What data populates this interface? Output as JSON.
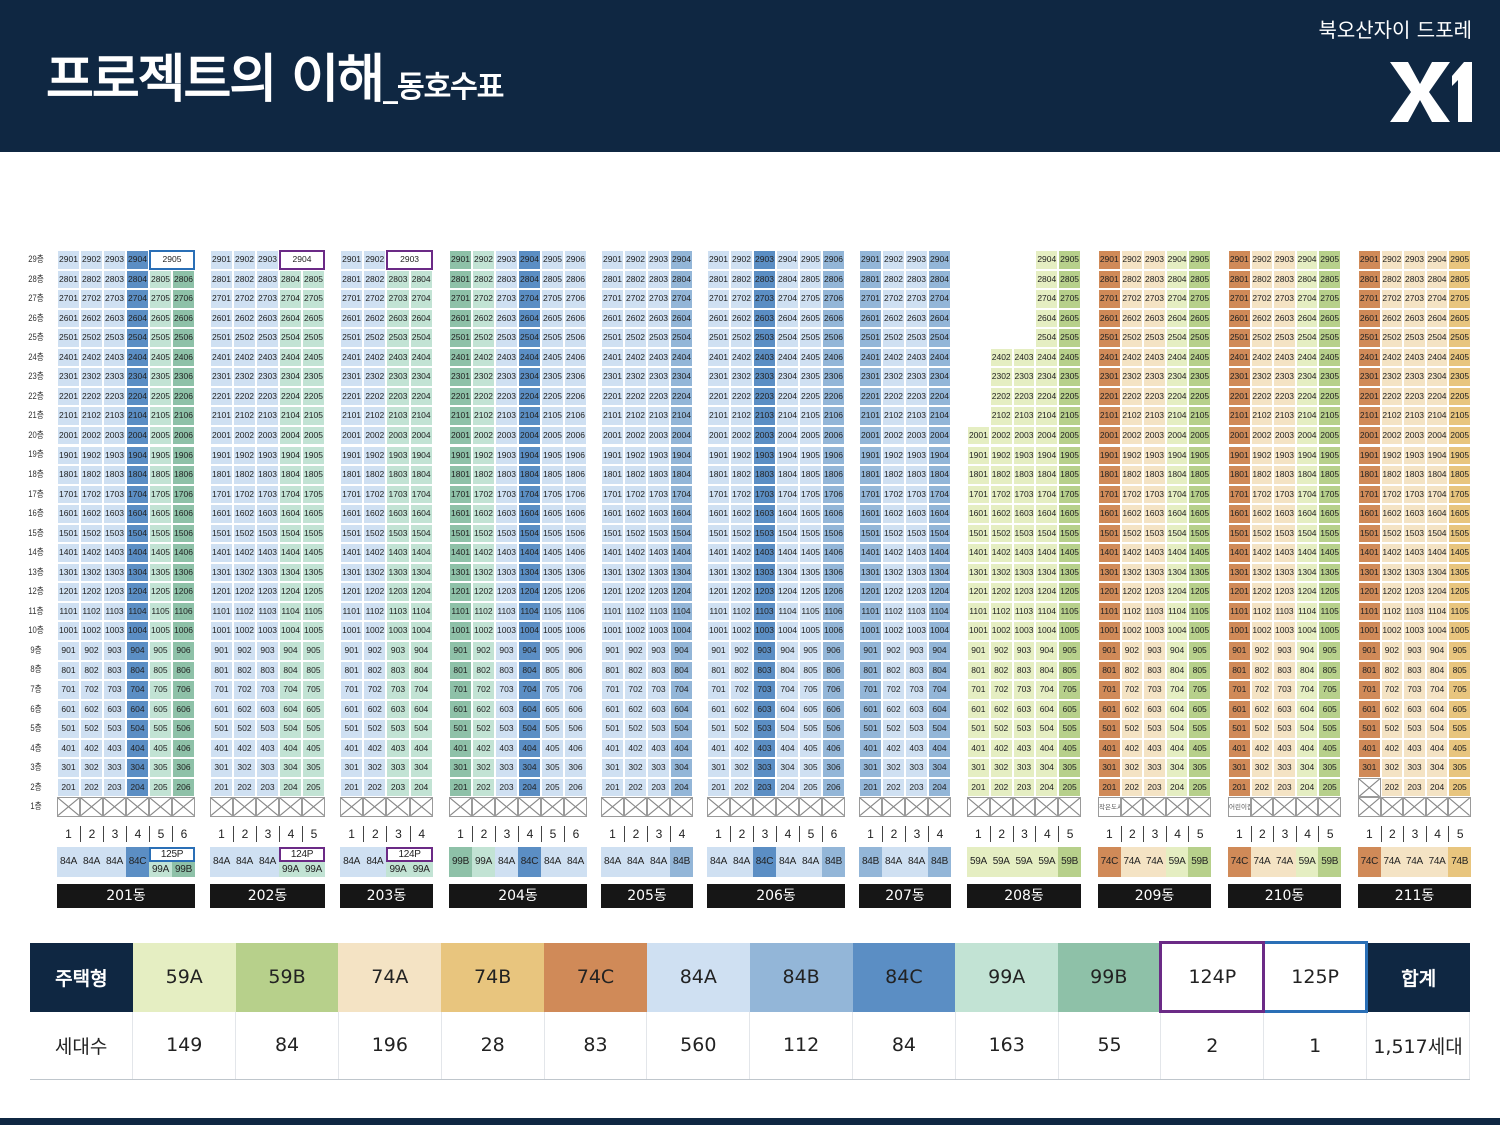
{
  "header": {
    "title_main": "프로젝트의 이해",
    "title_sub": "_동호수표",
    "brand_name": "북오산자이 드포레",
    "logo_text": "X1"
  },
  "colors": {
    "59A": "#e5eec2",
    "59B": "#b7d08b",
    "74A": "#f4e3c4",
    "74B": "#e8c57e",
    "74C": "#d08a58",
    "84A": "#cfe0f2",
    "84B": "#93b6d8",
    "84C": "#5b8ec4",
    "99A": "#c2e3d4",
    "99B": "#8ec1a8",
    "124P": "#6b2a86",
    "125P": "#2a6fb6",
    "header_bg": "#0f2742"
  },
  "floor_labels": [
    "29층",
    "28층",
    "27층",
    "26층",
    "25층",
    "24층",
    "23층",
    "22층",
    "21층",
    "20층",
    "19층",
    "18층",
    "17층",
    "16층",
    "15층",
    "14층",
    "13층",
    "12층",
    "11층",
    "10층",
    "9층",
    "8층",
    "7층",
    "6층",
    "5층",
    "4층",
    "3층",
    "2층",
    "1층"
  ],
  "buildings": [
    {
      "name": "201동",
      "lines": [
        {
          "no": 1,
          "type": "84A",
          "top": 29
        },
        {
          "no": 2,
          "type": "84A",
          "top": 29
        },
        {
          "no": 3,
          "type": "84A",
          "top": 29
        },
        {
          "no": 4,
          "type": "84C",
          "top": 29
        },
        {
          "no": 5,
          "type": "99A",
          "top": 28
        },
        {
          "no": 6,
          "type": "99B",
          "top": 28
        }
      ],
      "penthouse": {
        "type": "125P",
        "label": "2905",
        "from": 5,
        "to": 6
      }
    },
    {
      "name": "202동",
      "lines": [
        {
          "no": 1,
          "type": "84A",
          "top": 29
        },
        {
          "no": 2,
          "type": "84A",
          "top": 29
        },
        {
          "no": 3,
          "type": "84A",
          "top": 29
        },
        {
          "no": 4,
          "type": "99A",
          "top": 28
        },
        {
          "no": 5,
          "type": "99A",
          "top": 28
        }
      ],
      "penthouse": {
        "type": "124P",
        "label": "2904",
        "from": 4,
        "to": 5
      }
    },
    {
      "name": "203동",
      "lines": [
        {
          "no": 1,
          "type": "84A",
          "top": 29
        },
        {
          "no": 2,
          "type": "84A",
          "top": 29
        },
        {
          "no": 3,
          "type": "99A",
          "top": 28
        },
        {
          "no": 4,
          "type": "99A",
          "top": 28
        }
      ],
      "penthouse": {
        "type": "124P",
        "label": "2903",
        "from": 3,
        "to": 4
      }
    },
    {
      "name": "204동",
      "lines": [
        {
          "no": 1,
          "type": "99B",
          "top": 29
        },
        {
          "no": 2,
          "type": "99A",
          "top": 29
        },
        {
          "no": 3,
          "type": "84A",
          "top": 29
        },
        {
          "no": 4,
          "type": "84C",
          "top": 29
        },
        {
          "no": 5,
          "type": "84A",
          "top": 29
        },
        {
          "no": 6,
          "type": "84A",
          "top": 29
        }
      ]
    },
    {
      "name": "205동",
      "lines": [
        {
          "no": 1,
          "type": "84A",
          "top": 29
        },
        {
          "no": 2,
          "type": "84A",
          "top": 29
        },
        {
          "no": 3,
          "type": "84A",
          "top": 29
        },
        {
          "no": 4,
          "type": "84B",
          "top": 29
        }
      ]
    },
    {
      "name": "206동",
      "lines": [
        {
          "no": 1,
          "type": "84A",
          "top": 29
        },
        {
          "no": 2,
          "type": "84A",
          "top": 29
        },
        {
          "no": 3,
          "type": "84C",
          "top": 29
        },
        {
          "no": 4,
          "type": "84A",
          "top": 29
        },
        {
          "no": 5,
          "type": "84A",
          "top": 29
        },
        {
          "no": 6,
          "type": "84B",
          "top": 29
        }
      ]
    },
    {
      "name": "207동",
      "lines": [
        {
          "no": 1,
          "type": "84B",
          "top": 29
        },
        {
          "no": 2,
          "type": "84A",
          "top": 29
        },
        {
          "no": 3,
          "type": "84A",
          "top": 29
        },
        {
          "no": 4,
          "type": "84B",
          "top": 29
        }
      ]
    },
    {
      "name": "208동",
      "lines": [
        {
          "no": 1,
          "type": "59A",
          "top": 20
        },
        {
          "no": 2,
          "type": "59A",
          "top": 24
        },
        {
          "no": 3,
          "type": "59A",
          "top": 24
        },
        {
          "no": 4,
          "type": "59A",
          "top": 29
        },
        {
          "no": 5,
          "type": "59B",
          "top": 29
        }
      ]
    },
    {
      "name": "209동",
      "lines": [
        {
          "no": 1,
          "type": "74C",
          "top": 29
        },
        {
          "no": 2,
          "type": "74A",
          "top": 29
        },
        {
          "no": 3,
          "type": "74A",
          "top": 29
        },
        {
          "no": 4,
          "type": "59A",
          "top": 29
        },
        {
          "no": 5,
          "type": "59B",
          "top": 29
        }
      ],
      "ground_note": {
        "line": 1,
        "text": "작은도서관"
      }
    },
    {
      "name": "210동",
      "lines": [
        {
          "no": 1,
          "type": "74C",
          "top": 29
        },
        {
          "no": 2,
          "type": "74A",
          "top": 29
        },
        {
          "no": 3,
          "type": "74A",
          "top": 29
        },
        {
          "no": 4,
          "type": "59A",
          "top": 29
        },
        {
          "no": 5,
          "type": "59B",
          "top": 29
        }
      ],
      "ground_note": {
        "line": 1,
        "text": "어린이집"
      }
    },
    {
      "name": "211동",
      "lines": [
        {
          "no": 1,
          "type": "74C",
          "top": 29,
          "bottom": 3
        },
        {
          "no": 2,
          "type": "74A",
          "top": 29
        },
        {
          "no": 3,
          "type": "74A",
          "top": 29
        },
        {
          "no": 4,
          "type": "74A",
          "top": 29
        },
        {
          "no": 5,
          "type": "74B",
          "top": 29
        }
      ]
    }
  ],
  "summary": {
    "header_label": "주택형",
    "count_label": "세대수",
    "types": [
      "59A",
      "59B",
      "74A",
      "74B",
      "74C",
      "84A",
      "84B",
      "84C",
      "99A",
      "99B",
      "124P",
      "125P"
    ],
    "counts": [
      "149",
      "84",
      "196",
      "28",
      "83",
      "560",
      "112",
      "84",
      "163",
      "55",
      "2",
      "1"
    ],
    "total_label": "합계",
    "total_value": "1,517세대"
  }
}
